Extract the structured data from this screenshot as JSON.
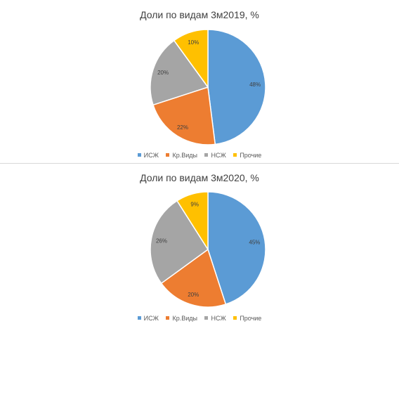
{
  "colors": {
    "ИСЖ": "#5b9bd5",
    "Кр.Виды": "#ed7d31",
    "НСЖ": "#a5a5a5",
    "Прочие": "#ffc000"
  },
  "chart_data": [
    {
      "type": "pie",
      "title": "Доли по видам 3м2019, %",
      "categories": [
        "ИСЖ",
        "Кр.Виды",
        "НСЖ",
        "Прочие"
      ],
      "values": [
        48,
        22,
        20,
        10
      ],
      "labels": [
        "48%",
        "22%",
        "20%",
        "10%"
      ],
      "legend": "bottom"
    },
    {
      "type": "pie",
      "title": "Доли по видам 3м2020, %",
      "categories": [
        "ИСЖ",
        "Кр.Виды",
        "НСЖ",
        "Прочие"
      ],
      "values": [
        45,
        20,
        26,
        9
      ],
      "labels": [
        "45%",
        "20%",
        "26%",
        "9%"
      ],
      "legend": "bottom"
    }
  ]
}
